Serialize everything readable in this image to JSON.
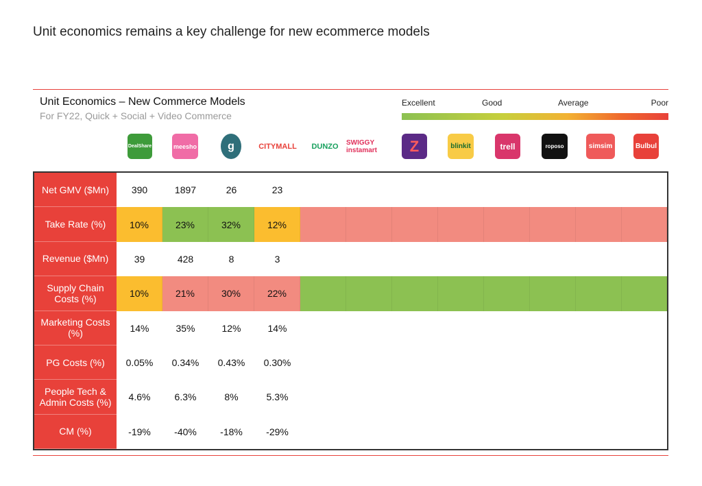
{
  "page": {
    "title": "Unit economics remains a key challenge for new ecommerce models"
  },
  "chart_data": {
    "type": "table",
    "title": "Unit Economics – New Commerce Models",
    "subtitle": "For FY22, Quick + Social + Video Commerce",
    "legend": {
      "labels": [
        "Excellent",
        "Good",
        "Average",
        "Poor"
      ],
      "colors": [
        "#8cc152",
        "#f2b233",
        "#ef6a2d",
        "#e8413a"
      ]
    },
    "columns": [
      "DealShare",
      "meesho",
      "g",
      "CITYMALL",
      "DUNZO",
      "SWIGGY instamart",
      "Z",
      "blinkit",
      "trell",
      "roposo",
      "simsim",
      "Bulbul"
    ],
    "rows": [
      {
        "label": "Net GMV ($Mn)",
        "values": [
          "390",
          "1897",
          "26",
          "23"
        ],
        "colors": []
      },
      {
        "label": "Take Rate (%)",
        "values": [
          "10%",
          "23%",
          "32%",
          "12%"
        ],
        "colors": [
          "#fbbd2f",
          "#8cc152",
          "#8cc152",
          "#fbbd2f"
        ],
        "rest_color": "#f28b80"
      },
      {
        "label": "Revenue ($Mn)",
        "values": [
          "39",
          "428",
          "8",
          "3"
        ],
        "colors": []
      },
      {
        "label": "Supply Chain Costs (%)",
        "values": [
          "10%",
          "21%",
          "30%",
          "22%"
        ],
        "colors": [
          "#fbbd2f",
          "#f28b80",
          "#f28b80",
          "#f28b80"
        ],
        "rest_color": "#8cc152"
      },
      {
        "label": "Marketing Costs (%)",
        "values": [
          "14%",
          "35%",
          "12%",
          "14%"
        ],
        "colors": []
      },
      {
        "label": "PG Costs (%)",
        "values": [
          "0.05%",
          "0.34%",
          "0.43%",
          "0.30%"
        ],
        "colors": []
      },
      {
        "label": "People Tech & Admin Costs (%)",
        "values": [
          "4.6%",
          "6.3%",
          "8%",
          "5.3%"
        ],
        "colors": []
      },
      {
        "label": "CM (%)",
        "values": [
          "-19%",
          "-40%",
          "-18%",
          "-29%"
        ],
        "colors": []
      }
    ]
  },
  "logos": [
    {
      "text": "DealShare",
      "bg": "#3e9b3a",
      "fg": "#ffffff"
    },
    {
      "text": "meesho",
      "bg": "#f06ca6",
      "fg": "#ffffff"
    },
    {
      "text": "g",
      "bg": "#2f6f7a",
      "fg": "#ffffff"
    },
    {
      "text": "CITYMALL",
      "bg": "",
      "fg": "#e8413a"
    },
    {
      "text": "DUNZO",
      "bg": "",
      "fg": "#17a05d"
    },
    {
      "text": "SWIGGY instamart",
      "bg": "",
      "fg": "#e0315b"
    },
    {
      "text": "Z",
      "bg": "#5b2a86",
      "fg": "#ff5c5c"
    },
    {
      "text": "blinkit",
      "bg": "#f8cb46",
      "fg": "#1a6b2e"
    },
    {
      "text": "trell",
      "bg": "#d9366b",
      "fg": "#ffffff"
    },
    {
      "text": "roposo",
      "bg": "#111111",
      "fg": "#ffffff"
    },
    {
      "text": "simsim",
      "bg": "#ef5a5a",
      "fg": "#ffffff"
    },
    {
      "text": "Bulbul",
      "bg": "#e8413a",
      "fg": "#ffffff"
    }
  ]
}
